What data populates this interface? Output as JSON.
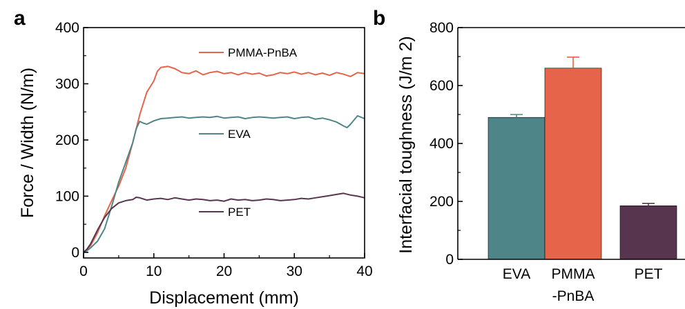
{
  "colors": {
    "pmma_pnba": "#E5644A",
    "eva": "#4E8588",
    "pet": "#58354F",
    "axis": "#000000"
  },
  "chart_data": [
    {
      "panel": "a",
      "type": "line",
      "xlabel": "Displacement (mm)",
      "ylabel": "Force / Width (N/m)",
      "xlim": [
        0,
        40
      ],
      "ylim": [
        -10,
        400
      ],
      "xticks": [
        0,
        10,
        20,
        30,
        40
      ],
      "yticks": [
        0,
        100,
        200,
        300,
        400
      ],
      "grid": false,
      "series": [
        {
          "name": "PMMA-PnBA",
          "color_key": "pmma_pnba",
          "x": [
            0,
            0.5,
            1,
            2,
            3,
            4,
            5,
            6,
            7,
            8,
            9,
            10,
            10.5,
            11,
            12,
            13,
            14,
            15,
            16,
            17,
            18,
            19,
            20,
            21,
            22,
            23,
            24,
            25,
            26,
            27,
            28,
            29,
            30,
            31,
            32,
            33,
            34,
            35,
            36,
            37,
            38,
            39,
            40
          ],
          "y": [
            0,
            5,
            12,
            35,
            65,
            92,
            118,
            150,
            195,
            245,
            285,
            305,
            322,
            329,
            331,
            327,
            320,
            318,
            323,
            316,
            320,
            322,
            318,
            320,
            316,
            320,
            317,
            319,
            314,
            316,
            320,
            318,
            321,
            317,
            320,
            316,
            319,
            315,
            320,
            317,
            313,
            320,
            318
          ]
        },
        {
          "name": "EVA",
          "color_key": "eva",
          "x": [
            0,
            0.5,
            1,
            2,
            3,
            4,
            5,
            6,
            7,
            7.5,
            8,
            8.5,
            9,
            10,
            11,
            12,
            13,
            14,
            15,
            16,
            17,
            18,
            19,
            20,
            21,
            22,
            23,
            24,
            25,
            26,
            27,
            28,
            29,
            30,
            31,
            32,
            33,
            34,
            35,
            36,
            37,
            37.5,
            38,
            39,
            40
          ],
          "y": [
            0,
            3,
            8,
            20,
            42,
            82,
            125,
            160,
            195,
            220,
            233,
            230,
            228,
            234,
            238,
            239,
            240,
            241,
            239,
            240,
            241,
            240,
            242,
            239,
            240,
            241,
            238,
            240,
            241,
            240,
            239,
            240,
            241,
            238,
            240,
            241,
            237,
            239,
            236,
            232,
            225,
            222,
            228,
            243,
            238
          ]
        },
        {
          "name": "PET",
          "color_key": "pet",
          "x": [
            0,
            0.5,
            1,
            2,
            3,
            4,
            5,
            6,
            7,
            7.5,
            8,
            9,
            10,
            11,
            12,
            13,
            14,
            15,
            16,
            17,
            18,
            19,
            20,
            21,
            22,
            23,
            24,
            25,
            26,
            27,
            28,
            29,
            30,
            31,
            32,
            33,
            34,
            35,
            36,
            37,
            38,
            39,
            40
          ],
          "y": [
            0,
            6,
            15,
            40,
            62,
            78,
            88,
            92,
            94,
            98,
            97,
            93,
            95,
            96,
            94,
            97,
            95,
            93,
            95,
            94,
            92,
            93,
            91,
            95,
            93,
            94,
            92,
            93,
            95,
            94,
            92,
            93,
            94,
            96,
            95,
            97,
            99,
            101,
            103,
            105,
            102,
            100,
            97
          ]
        }
      ],
      "legend": [
        {
          "label": "PMMA-PnBA",
          "color_key": "pmma_pnba"
        },
        {
          "label": "EVA",
          "color_key": "eva"
        },
        {
          "label": "PET",
          "color_key": "pet"
        }
      ]
    },
    {
      "panel": "b",
      "type": "bar",
      "ylabel": "Interfacial toughness (J/m 2)",
      "ylim": [
        0,
        800
      ],
      "yticks": [
        0,
        200,
        400,
        600,
        800
      ],
      "grid": false,
      "categories": [
        {
          "line1": "EVA",
          "line2": ""
        },
        {
          "line1": "PMMA",
          "line2": "-PnBA"
        },
        {
          "line1": "PET",
          "line2": ""
        }
      ],
      "values": [
        490,
        660,
        185
      ],
      "errors": [
        10,
        38,
        8
      ],
      "bar_color_keys": [
        "eva",
        "pmma_pnba",
        "pet"
      ]
    }
  ]
}
